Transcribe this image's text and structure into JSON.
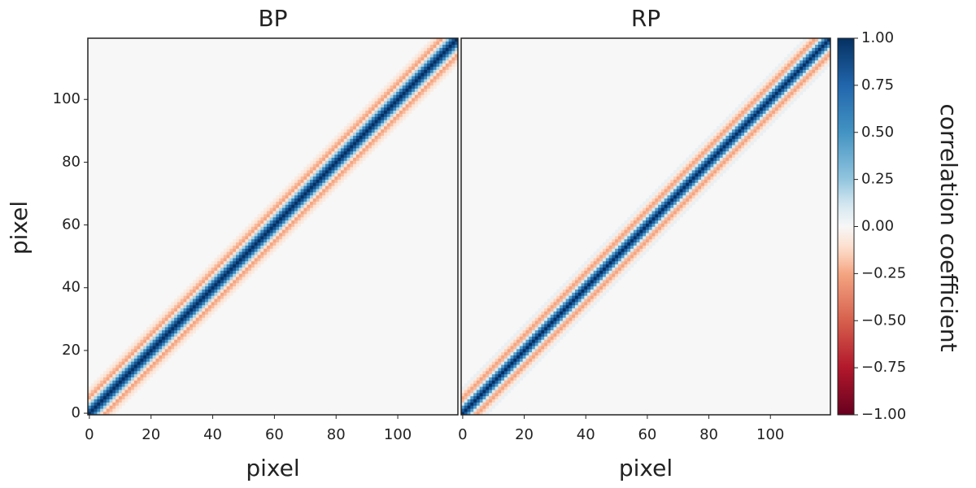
{
  "chart_data": [
    {
      "type": "heatmap",
      "title": "BP",
      "xlabel": "pixel",
      "ylabel": "pixel",
      "xlim": [
        -0.5,
        119.5
      ],
      "ylim": [
        -0.5,
        119.5
      ],
      "xticks": [
        0,
        20,
        40,
        60,
        80,
        100
      ],
      "yticks": [
        0,
        20,
        40,
        60,
        80,
        100
      ],
      "size": 120,
      "colormap": "RdBu_r",
      "lags": [
        -8,
        -7,
        -6,
        -5,
        -4,
        -3,
        -2,
        -1,
        0,
        1,
        2,
        3,
        4,
        5,
        6,
        7,
        8
      ],
      "values": [
        -0.05,
        -0.1,
        -0.2,
        -0.25,
        -0.1,
        0.2,
        0.55,
        0.85,
        1,
        0.85,
        0.55,
        0.2,
        -0.1,
        -0.25,
        -0.2,
        -0.1,
        -0.05
      ]
    },
    {
      "type": "heatmap",
      "title": "RP",
      "xlabel": "pixel",
      "xlim": [
        -0.5,
        119.5
      ],
      "ylim": [
        -0.5,
        119.5
      ],
      "xticks": [
        0,
        20,
        40,
        60,
        80,
        100
      ],
      "size": 120,
      "colormap": "RdBu_r",
      "lags": [
        -8,
        -7,
        -6,
        -5,
        -4,
        -3,
        -2,
        -1,
        0,
        1,
        2,
        3,
        4,
        5,
        6,
        7,
        8
      ],
      "values": [
        0.05,
        -0.05,
        -0.15,
        -0.25,
        -0.2,
        0.1,
        0.45,
        0.8,
        1,
        0.8,
        0.45,
        0.1,
        -0.2,
        -0.25,
        -0.15,
        -0.05,
        0.05
      ]
    }
  ],
  "colorbar": {
    "label": "correlation coefficient",
    "lim": [
      -1,
      1
    ],
    "colormap": "RdBu_r",
    "ticks": [
      {
        "value": 1,
        "label": "1.00"
      },
      {
        "value": 0.75,
        "label": "0.75"
      },
      {
        "value": 0.5,
        "label": "0.50"
      },
      {
        "value": 0.25,
        "label": "0.25"
      },
      {
        "value": 0,
        "label": "0.00"
      },
      {
        "value": -0.25,
        "label": "−0.25"
      },
      {
        "value": -0.5,
        "label": "−0.50"
      },
      {
        "value": -0.75,
        "label": "−0.75"
      },
      {
        "value": -1,
        "label": "−1.00"
      }
    ]
  }
}
